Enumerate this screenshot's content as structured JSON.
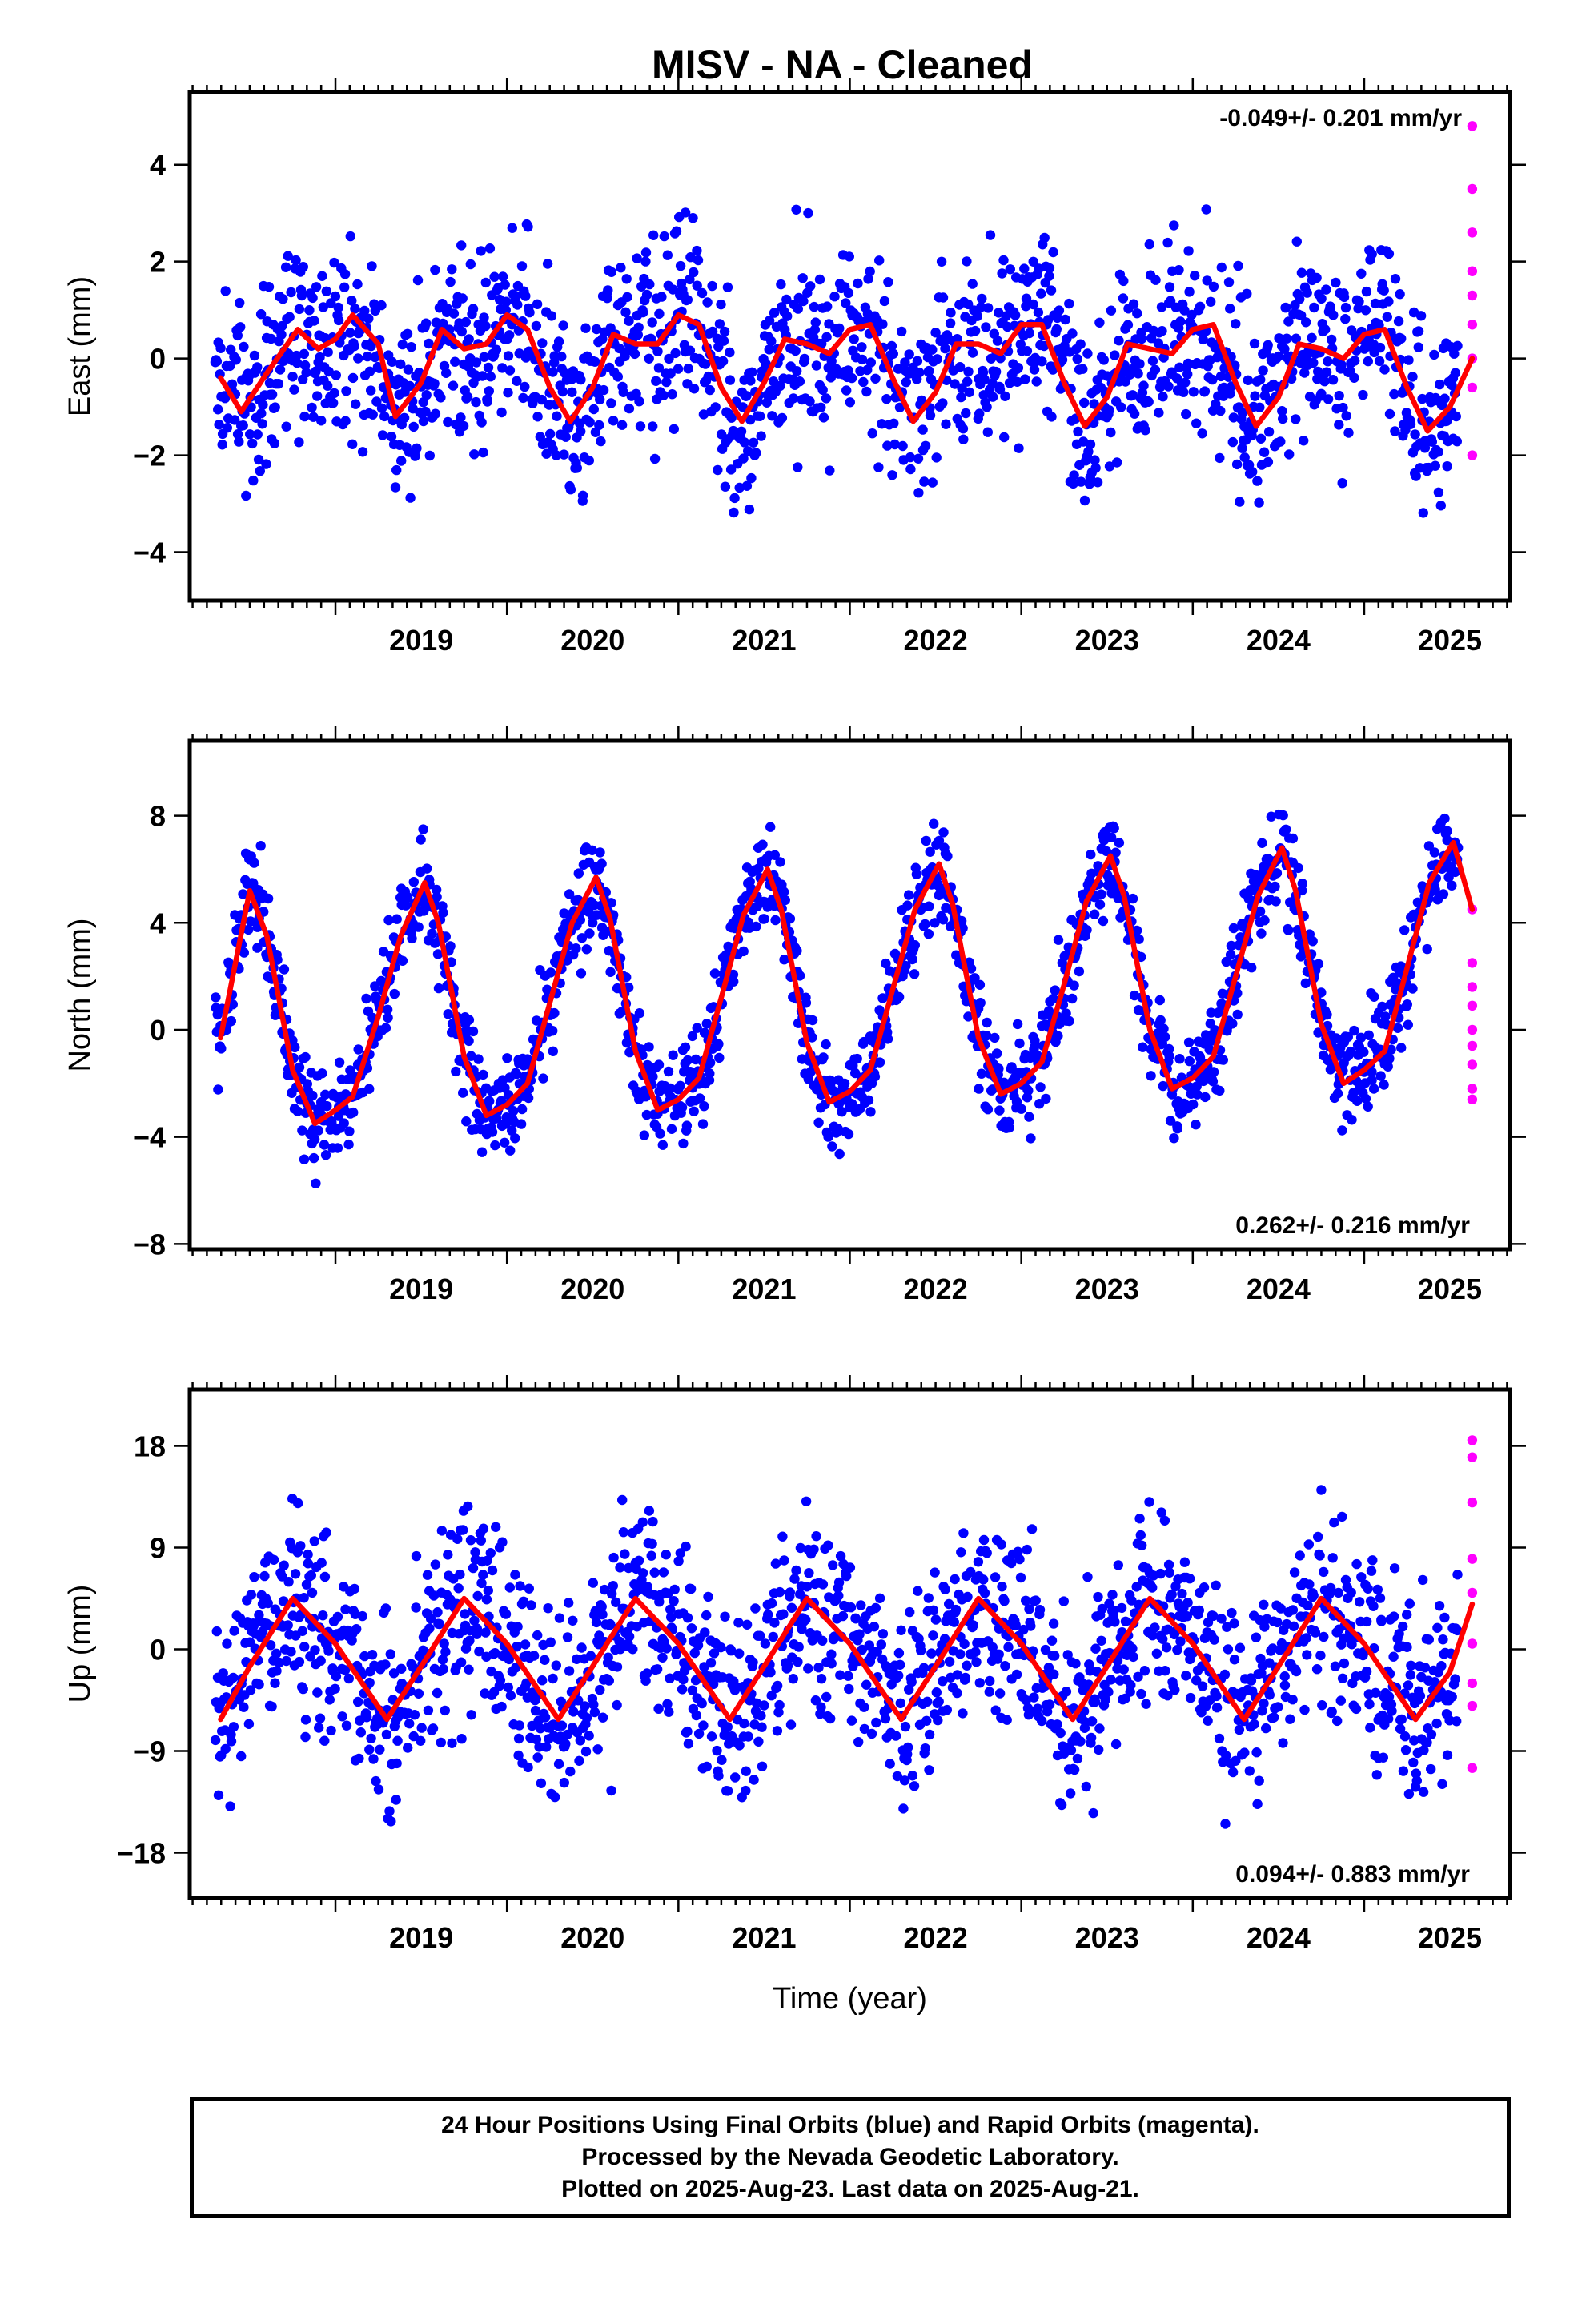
{
  "chart_data": [
    {
      "type": "scatter",
      "title": "MISV  - NA - Cleaned",
      "ylabel": "East (mm)",
      "xlabel": "",
      "rate_label": "-0.049+/- 0.201 mm/yr",
      "rate_position": "top-right",
      "xlim": [
        2018.15,
        2025.85
      ],
      "ylim": [
        -5.0,
        5.5
      ],
      "xticks": [
        "2019",
        "2020",
        "2021",
        "2022",
        "2023",
        "2024",
        "2025"
      ],
      "yticks": [
        "−4",
        "−2",
        "0",
        "2",
        "4"
      ],
      "ytick_values": [
        -4,
        -2,
        0,
        2,
        4
      ],
      "grid": false,
      "series": [
        {
          "color": "#0000ff",
          "marker": "dot",
          "x_range": [
            2018.3,
            2025.55
          ],
          "scatter_sd": 0.95
        },
        {
          "color": "#ff00ff",
          "marker": "dot",
          "x": [
            2025.63,
            2025.63,
            2025.63,
            2025.63,
            2025.63,
            2025.63,
            2025.63,
            2025.63,
            2025.63
          ],
          "y": [
            4.8,
            3.5,
            2.6,
            1.8,
            1.3,
            0.7,
            0.0,
            -0.6,
            -2.0
          ]
        },
        {
          "color": "#ff0000",
          "line": true,
          "x": [
            2018.33,
            2018.45,
            2018.6,
            2018.78,
            2018.9,
            2019.0,
            2019.1,
            2019.25,
            2019.35,
            2019.5,
            2019.62,
            2019.75,
            2019.88,
            2020.0,
            2020.12,
            2020.25,
            2020.37,
            2020.5,
            2020.62,
            2020.75,
            2020.88,
            2021.0,
            2021.12,
            2021.25,
            2021.37,
            2021.5,
            2021.62,
            2021.75,
            2021.88,
            2022.0,
            2022.12,
            2022.25,
            2022.37,
            2022.5,
            2022.62,
            2022.75,
            2022.88,
            2023.0,
            2023.12,
            2023.25,
            2023.37,
            2023.5,
            2023.62,
            2023.75,
            2023.88,
            2024.0,
            2024.12,
            2024.25,
            2024.37,
            2024.5,
            2024.62,
            2024.75,
            2024.88,
            2025.0,
            2025.12,
            2025.25,
            2025.37,
            2025.5,
            2025.63
          ],
          "y": [
            -0.4,
            -1.1,
            -0.3,
            0.6,
            0.2,
            0.4,
            0.9,
            0.3,
            -1.2,
            -0.5,
            0.6,
            0.2,
            0.3,
            0.9,
            0.6,
            -0.6,
            -1.3,
            -0.6,
            0.5,
            0.3,
            0.3,
            0.9,
            0.7,
            -0.6,
            -1.3,
            -0.5,
            0.4,
            0.3,
            0.1,
            0.6,
            0.7,
            -0.4,
            -1.3,
            -0.7,
            0.3,
            0.3,
            0.1,
            0.7,
            0.7,
            -0.5,
            -1.4,
            -0.8,
            0.3,
            0.2,
            0.1,
            0.6,
            0.7,
            -0.5,
            -1.4,
            -0.8,
            0.3,
            0.2,
            0.0,
            0.5,
            0.6,
            -0.6,
            -1.5,
            -1.0,
            0.0
          ]
        }
      ]
    },
    {
      "type": "scatter",
      "ylabel": "North (mm)",
      "xlabel": "",
      "rate_label": "0.262+/- 0.216 mm/yr",
      "rate_position": "bottom-right",
      "xlim": [
        2018.15,
        2025.85
      ],
      "ylim": [
        -8.2,
        10.8
      ],
      "xticks": [
        "2019",
        "2020",
        "2021",
        "2022",
        "2023",
        "2024",
        "2025"
      ],
      "yticks": [
        "−8",
        "−4",
        "0",
        "4",
        "8"
      ],
      "ytick_values": [
        -8,
        -4,
        0,
        4,
        8
      ],
      "grid": false,
      "series": [
        {
          "color": "#0000ff",
          "marker": "dot",
          "x_range": [
            2018.3,
            2025.55
          ],
          "scatter_sd": 0.9
        },
        {
          "color": "#ff00ff",
          "marker": "dot",
          "x": [
            2025.63,
            2025.63,
            2025.63,
            2025.63,
            2025.63,
            2025.63,
            2025.63,
            2025.63,
            2025.63
          ],
          "y": [
            4.5,
            2.5,
            1.6,
            0.9,
            0.0,
            -0.6,
            -1.3,
            -2.2,
            -2.6
          ]
        },
        {
          "color": "#ff0000",
          "line": true,
          "x": [
            2018.33,
            2018.5,
            2018.6,
            2018.75,
            2018.88,
            2019.0,
            2019.1,
            2019.25,
            2019.38,
            2019.52,
            2019.6,
            2019.75,
            2019.88,
            2020.0,
            2020.12,
            2020.25,
            2020.38,
            2020.52,
            2020.6,
            2020.75,
            2020.88,
            2021.0,
            2021.12,
            2021.25,
            2021.38,
            2021.52,
            2021.6,
            2021.75,
            2021.88,
            2022.0,
            2022.12,
            2022.25,
            2022.38,
            2022.52,
            2022.6,
            2022.75,
            2022.88,
            2023.0,
            2023.12,
            2023.25,
            2023.38,
            2023.52,
            2023.6,
            2023.75,
            2023.88,
            2024.0,
            2024.12,
            2024.25,
            2024.38,
            2024.52,
            2024.6,
            2024.75,
            2024.88,
            2025.0,
            2025.12,
            2025.25,
            2025.38,
            2025.52,
            2025.63
          ],
          "y": [
            -0.3,
            5.2,
            3.5,
            -1.5,
            -3.5,
            -3.0,
            -2.5,
            0.5,
            3.5,
            5.5,
            4.0,
            -1.0,
            -3.2,
            -2.8,
            -2.0,
            1.0,
            4.0,
            5.7,
            4.2,
            -0.8,
            -3.0,
            -2.6,
            -1.8,
            1.2,
            4.3,
            6.0,
            4.5,
            -0.5,
            -2.7,
            -2.3,
            -1.5,
            1.5,
            4.5,
            6.2,
            4.7,
            -0.3,
            -2.4,
            -2.0,
            -1.2,
            1.7,
            4.8,
            6.5,
            5.0,
            0.0,
            -2.2,
            -1.8,
            -1.0,
            2.0,
            5.0,
            6.8,
            5.2,
            0.2,
            -2.0,
            -1.5,
            -0.8,
            2.3,
            5.5,
            7.0,
            4.5
          ]
        }
      ]
    },
    {
      "type": "scatter",
      "ylabel": "Up (mm)",
      "xlabel": "Time (year)",
      "rate_label": "0.094+/- 0.883 mm/yr",
      "rate_position": "bottom-right",
      "xlim": [
        2018.15,
        2025.85
      ],
      "ylim": [
        -22.0,
        23.0
      ],
      "xticks": [
        "2019",
        "2020",
        "2021",
        "2022",
        "2023",
        "2024",
        "2025"
      ],
      "yticks": [
        "−18",
        "−9",
        "0",
        "9",
        "18"
      ],
      "ytick_values": [
        -18,
        -9,
        0,
        9,
        18
      ],
      "grid": false,
      "series": [
        {
          "color": "#0000ff",
          "marker": "dot",
          "x_range": [
            2018.3,
            2025.55
          ],
          "scatter_sd": 4.2
        },
        {
          "color": "#ff00ff",
          "marker": "dot",
          "x": [
            2025.63,
            2025.63,
            2025.63,
            2025.63,
            2025.63,
            2025.63,
            2025.63,
            2025.63,
            2025.63
          ],
          "y": [
            18.5,
            17.0,
            13.0,
            8.0,
            5.0,
            0.5,
            -3.0,
            -5.0,
            -10.5
          ]
        },
        {
          "color": "#ff0000",
          "line": true,
          "x": [
            2018.33,
            2018.5,
            2018.75,
            2019.0,
            2019.3,
            2019.5,
            2019.75,
            2020.0,
            2020.3,
            2020.5,
            2020.75,
            2021.0,
            2021.3,
            2021.5,
            2021.75,
            2022.0,
            2022.3,
            2022.5,
            2022.75,
            2023.0,
            2023.3,
            2023.5,
            2023.75,
            2024.0,
            2024.3,
            2024.5,
            2024.75,
            2025.0,
            2025.3,
            2025.5,
            2025.63
          ],
          "y": [
            -6.2,
            -1.5,
            4.5,
            0.5,
            -6.2,
            -1.5,
            4.5,
            0.5,
            -6.2,
            -1.5,
            4.5,
            0.5,
            -6.2,
            -1.5,
            4.5,
            0.5,
            -6.2,
            -1.5,
            4.5,
            0.5,
            -6.2,
            -1.5,
            4.5,
            0.5,
            -6.2,
            -1.5,
            4.5,
            0.5,
            -6.2,
            -2.0,
            4.0
          ]
        }
      ]
    }
  ],
  "footer": {
    "line1": "24 Hour Positions Using Final Orbits (blue) and Rapid Orbits (magenta).",
    "line2": "Processed by the Nevada Geodetic Laboratory.",
    "line3": "Plotted on 2025-Aug-23. Last data on 2025-Aug-21."
  }
}
